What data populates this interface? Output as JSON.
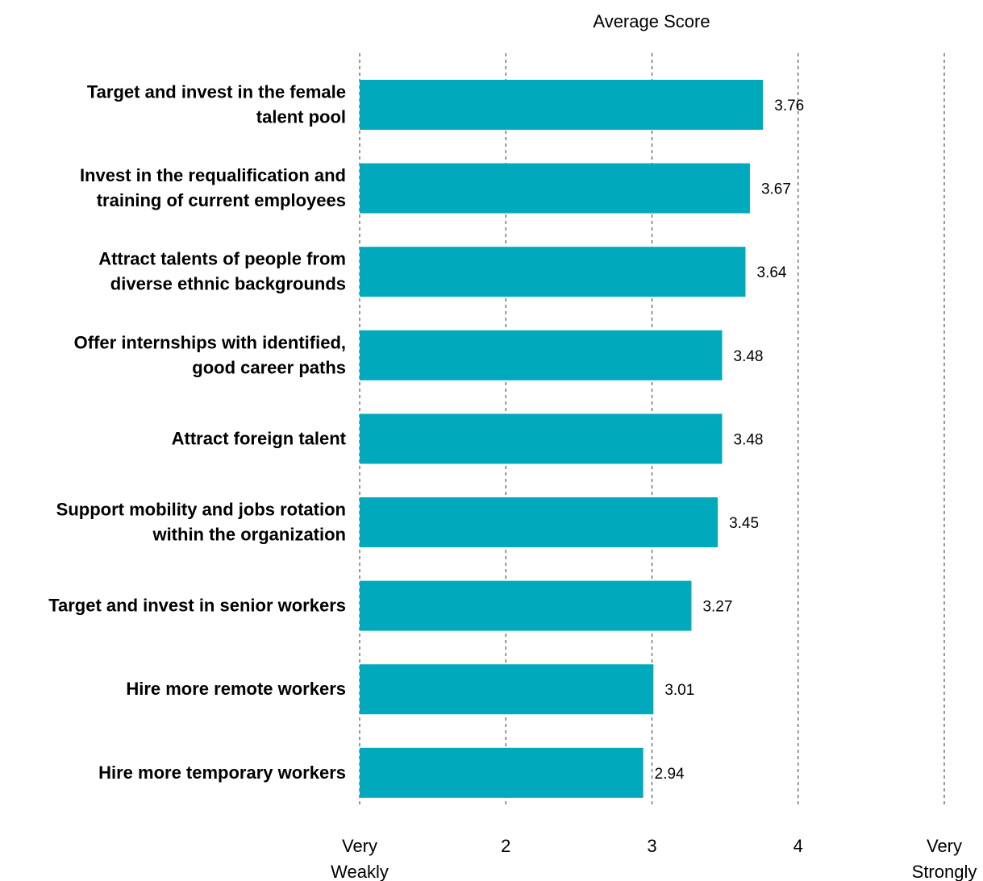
{
  "chart_data": {
    "type": "bar",
    "orientation": "horizontal",
    "title": "Average Score",
    "xlabel": "",
    "ylabel": "",
    "xlim": [
      1,
      5
    ],
    "grid": true,
    "bar_color": "#00a9bc",
    "categories": [
      [
        "Target and invest in the female",
        "talent pool"
      ],
      [
        "Invest in the requalification and",
        "training of current employees"
      ],
      [
        "Attract talents of people from",
        "diverse ethnic backgrounds"
      ],
      [
        "Offer internships with identified,",
        "good career paths"
      ],
      [
        "Attract foreign talent"
      ],
      [
        "Support mobility and jobs rotation",
        "within the organization"
      ],
      [
        "Target and invest in senior workers"
      ],
      [
        "Hire more remote workers"
      ],
      [
        "Hire more temporary workers"
      ]
    ],
    "values": [
      3.76,
      3.67,
      3.64,
      3.48,
      3.48,
      3.45,
      3.27,
      3.01,
      2.94
    ],
    "value_labels": [
      "3.76",
      "3.67",
      "3.64",
      "3.48",
      "3.48",
      "3.45",
      "3.27",
      "3.01",
      "2.94"
    ],
    "ticks": [
      {
        "value": 1,
        "label": [
          "Very",
          "Weakly"
        ]
      },
      {
        "value": 2,
        "label": [
          "2"
        ]
      },
      {
        "value": 3,
        "label": [
          "3"
        ]
      },
      {
        "value": 4,
        "label": [
          "4"
        ]
      },
      {
        "value": 5,
        "label": [
          "Very",
          "Strongly"
        ]
      }
    ]
  }
}
